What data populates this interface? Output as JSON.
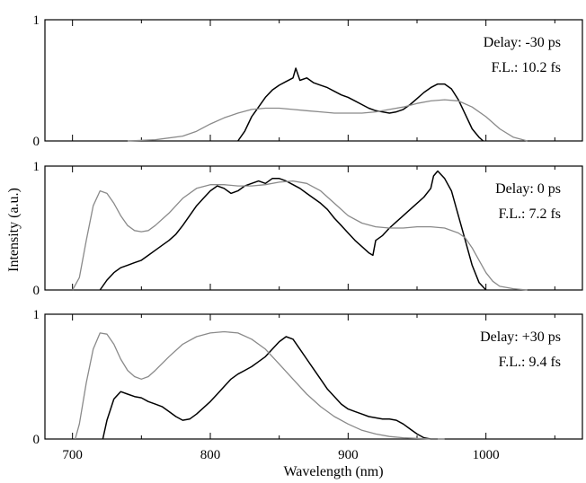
{
  "chart_data": {
    "type": "line",
    "xlabel": "Wavelength (nm)",
    "ylabel": "Intensity (a.u.)",
    "xlim": [
      680,
      1070
    ],
    "ylim": [
      0,
      1
    ],
    "x_tick_labels": [
      "700",
      "800",
      "900",
      "1000"
    ],
    "y_tick_labels": [
      "0",
      "1"
    ],
    "colors": {
      "measured": "#000000",
      "simulated": "#8a8a8a"
    },
    "panels": [
      {
        "annotations": [
          "Delay: -30 ps",
          "F.L.: 10.2 fs"
        ],
        "series": [
          {
            "style": "measured",
            "x": [
              820,
              825,
              830,
              835,
              840,
              845,
              850,
              855,
              860,
              862,
              865,
              870,
              875,
              880,
              885,
              890,
              895,
              900,
              905,
              910,
              915,
              920,
              925,
              930,
              935,
              940,
              945,
              950,
              955,
              960,
              965,
              970,
              975,
              980,
              985,
              990,
              995,
              998
            ],
            "y": [
              0.0,
              0.08,
              0.2,
              0.28,
              0.36,
              0.42,
              0.46,
              0.49,
              0.52,
              0.6,
              0.5,
              0.52,
              0.48,
              0.46,
              0.44,
              0.41,
              0.38,
              0.36,
              0.33,
              0.3,
              0.27,
              0.25,
              0.24,
              0.23,
              0.24,
              0.26,
              0.3,
              0.35,
              0.4,
              0.44,
              0.47,
              0.47,
              0.43,
              0.34,
              0.22,
              0.1,
              0.03,
              0.0
            ]
          },
          {
            "style": "simulated",
            "x": [
              740,
              760,
              780,
              790,
              800,
              810,
              820,
              830,
              840,
              850,
              860,
              870,
              880,
              890,
              900,
              910,
              920,
              930,
              940,
              950,
              960,
              970,
              980,
              990,
              1000,
              1010,
              1020,
              1030
            ],
            "y": [
              0.0,
              0.01,
              0.04,
              0.08,
              0.14,
              0.19,
              0.23,
              0.26,
              0.27,
              0.27,
              0.26,
              0.25,
              0.24,
              0.23,
              0.23,
              0.23,
              0.24,
              0.26,
              0.28,
              0.31,
              0.33,
              0.34,
              0.33,
              0.28,
              0.2,
              0.1,
              0.03,
              0.0
            ]
          }
        ]
      },
      {
        "annotations": [
          "Delay: 0 ps",
          "F.L.: 7.2 fs"
        ],
        "series": [
          {
            "style": "measured",
            "x": [
              720,
              725,
              730,
              735,
              740,
              745,
              750,
              755,
              760,
              765,
              770,
              775,
              780,
              785,
              790,
              795,
              800,
              805,
              810,
              815,
              820,
              825,
              830,
              835,
              840,
              845,
              850,
              855,
              860,
              865,
              870,
              875,
              880,
              885,
              890,
              895,
              900,
              905,
              910,
              915,
              918,
              920,
              925,
              930,
              935,
              940,
              945,
              950,
              955,
              960,
              962,
              965,
              970,
              975,
              980,
              985,
              990,
              995,
              1000
            ],
            "y": [
              0.0,
              0.08,
              0.14,
              0.18,
              0.2,
              0.22,
              0.24,
              0.28,
              0.32,
              0.36,
              0.4,
              0.45,
              0.52,
              0.6,
              0.68,
              0.74,
              0.8,
              0.84,
              0.82,
              0.78,
              0.8,
              0.84,
              0.86,
              0.88,
              0.86,
              0.9,
              0.9,
              0.88,
              0.85,
              0.82,
              0.78,
              0.74,
              0.7,
              0.65,
              0.58,
              0.52,
              0.46,
              0.4,
              0.35,
              0.3,
              0.28,
              0.4,
              0.44,
              0.5,
              0.55,
              0.6,
              0.65,
              0.7,
              0.75,
              0.82,
              0.92,
              0.96,
              0.9,
              0.8,
              0.6,
              0.4,
              0.2,
              0.06,
              0.0
            ]
          },
          {
            "style": "simulated",
            "x": [
              700,
              705,
              710,
              715,
              720,
              725,
              730,
              735,
              740,
              745,
              750,
              755,
              760,
              770,
              780,
              790,
              800,
              810,
              820,
              830,
              840,
              850,
              860,
              870,
              880,
              890,
              900,
              910,
              920,
              930,
              940,
              950,
              960,
              970,
              980,
              985,
              990,
              995,
              1000,
              1005,
              1010,
              1020,
              1030
            ],
            "y": [
              0.0,
              0.1,
              0.4,
              0.68,
              0.8,
              0.78,
              0.7,
              0.6,
              0.52,
              0.48,
              0.47,
              0.48,
              0.52,
              0.62,
              0.74,
              0.82,
              0.85,
              0.85,
              0.84,
              0.84,
              0.85,
              0.87,
              0.88,
              0.86,
              0.8,
              0.7,
              0.6,
              0.54,
              0.51,
              0.5,
              0.5,
              0.51,
              0.51,
              0.5,
              0.46,
              0.42,
              0.34,
              0.24,
              0.14,
              0.07,
              0.03,
              0.01,
              0.0
            ]
          }
        ]
      },
      {
        "annotations": [
          "Delay: +30 ps",
          "F.L.: 9.4 fs"
        ],
        "series": [
          {
            "style": "measured",
            "x": [
              722,
              725,
              730,
              735,
              740,
              745,
              750,
              755,
              760,
              765,
              770,
              775,
              780,
              785,
              790,
              795,
              800,
              805,
              810,
              815,
              820,
              825,
              830,
              835,
              840,
              845,
              850,
              855,
              860,
              865,
              870,
              875,
              880,
              885,
              890,
              895,
              900,
              905,
              910,
              915,
              920,
              925,
              930,
              935,
              940,
              945,
              950,
              955,
              960,
              965
            ],
            "y": [
              0.0,
              0.15,
              0.32,
              0.38,
              0.36,
              0.34,
              0.33,
              0.3,
              0.28,
              0.26,
              0.22,
              0.18,
              0.15,
              0.16,
              0.2,
              0.25,
              0.3,
              0.36,
              0.42,
              0.48,
              0.52,
              0.55,
              0.58,
              0.62,
              0.66,
              0.72,
              0.78,
              0.82,
              0.8,
              0.72,
              0.64,
              0.56,
              0.48,
              0.4,
              0.34,
              0.28,
              0.24,
              0.22,
              0.2,
              0.18,
              0.17,
              0.16,
              0.16,
              0.15,
              0.12,
              0.08,
              0.04,
              0.01,
              0.0,
              0.0
            ]
          },
          {
            "style": "simulated",
            "x": [
              702,
              705,
              710,
              715,
              720,
              725,
              730,
              735,
              740,
              745,
              750,
              755,
              760,
              770,
              780,
              790,
              800,
              810,
              820,
              830,
              840,
              850,
              860,
              870,
              880,
              890,
              900,
              910,
              920,
              930,
              940,
              950,
              960,
              970
            ],
            "y": [
              0.0,
              0.12,
              0.45,
              0.72,
              0.85,
              0.84,
              0.76,
              0.64,
              0.55,
              0.5,
              0.48,
              0.5,
              0.55,
              0.66,
              0.76,
              0.82,
              0.85,
              0.86,
              0.85,
              0.8,
              0.72,
              0.6,
              0.48,
              0.36,
              0.26,
              0.18,
              0.12,
              0.07,
              0.04,
              0.02,
              0.01,
              0.005,
              0.0,
              0.0
            ]
          }
        ]
      }
    ]
  }
}
